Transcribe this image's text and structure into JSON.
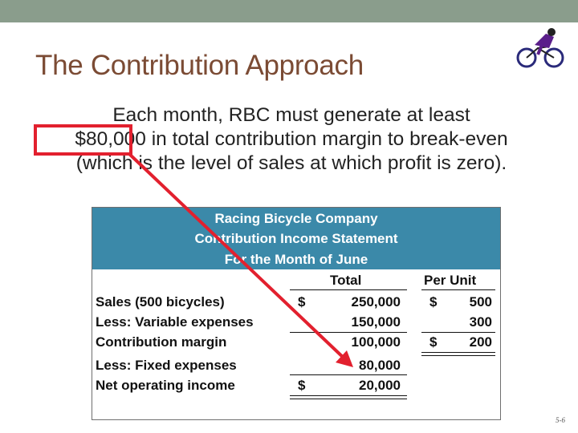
{
  "slide": {
    "title": "The Contribution Approach",
    "body_lines": [
      "Each month, RBC must generate at least",
      "$80,000 in total contribution margin to break-even",
      "(which is the level of sales at which profit is zero)."
    ],
    "footer": "5-6"
  },
  "statement": {
    "header": [
      "Racing Bicycle Company",
      "Contribution Income Statement",
      "For the Month of June"
    ],
    "columns": {
      "total": "Total",
      "per_unit": "Per Unit"
    },
    "rows": [
      {
        "label": "Sales (500 bicycles)",
        "total_sign": "$",
        "total": "250,000",
        "unit_sign": "$",
        "unit": "500"
      },
      {
        "label": "Less: Variable expenses",
        "total_sign": "",
        "total": "150,000",
        "unit_sign": "",
        "unit": "300"
      },
      {
        "label": "Contribution margin",
        "total_sign": "",
        "total": "100,000",
        "unit_sign": "$",
        "unit": "200"
      },
      {
        "label": "Less: Fixed expenses",
        "total_sign": "",
        "total": "80,000",
        "unit_sign": "",
        "unit": ""
      },
      {
        "label": "Net operating income",
        "total_sign": "$",
        "total": "20,000",
        "unit_sign": "",
        "unit": ""
      }
    ]
  },
  "colors": {
    "header_bg": "#3b89a9",
    "highlight": "#e2202e",
    "title": "#7b4b34",
    "top_bar": "#8a9d8c"
  },
  "icons": {
    "logo": "cyclist-icon"
  }
}
